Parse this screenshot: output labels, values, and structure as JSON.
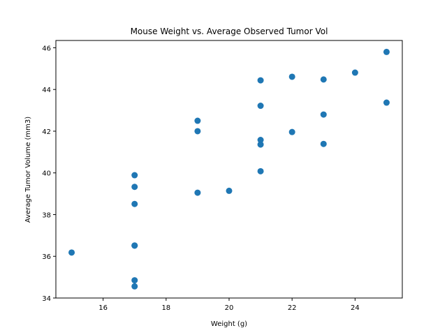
{
  "chart_data": {
    "type": "scatter",
    "title": "Mouse Weight vs. Average Observed Tumor Vol",
    "xlabel": "Weight (g)",
    "ylabel": "Average Tumor Volume (mm3)",
    "xlim": [
      14.5,
      25.5
    ],
    "ylim": [
      34,
      46.35
    ],
    "x_ticks": [
      16,
      18,
      20,
      22,
      24
    ],
    "y_ticks": [
      34,
      36,
      38,
      40,
      42,
      44,
      46
    ],
    "grid": false,
    "marker_color": "#1f77b4",
    "points": [
      {
        "x": 15,
        "y": 36.18
      },
      {
        "x": 17,
        "y": 34.56
      },
      {
        "x": 17,
        "y": 34.85
      },
      {
        "x": 17,
        "y": 36.51
      },
      {
        "x": 17,
        "y": 36.52
      },
      {
        "x": 17,
        "y": 38.51
      },
      {
        "x": 17,
        "y": 39.33
      },
      {
        "x": 17,
        "y": 39.89
      },
      {
        "x": 19,
        "y": 39.05
      },
      {
        "x": 19,
        "y": 42.0
      },
      {
        "x": 19,
        "y": 42.5
      },
      {
        "x": 20,
        "y": 39.14
      },
      {
        "x": 21,
        "y": 40.08
      },
      {
        "x": 21,
        "y": 41.36
      },
      {
        "x": 21,
        "y": 41.58
      },
      {
        "x": 21,
        "y": 43.22
      },
      {
        "x": 21,
        "y": 44.44
      },
      {
        "x": 22,
        "y": 41.96
      },
      {
        "x": 22,
        "y": 44.61
      },
      {
        "x": 23,
        "y": 41.39
      },
      {
        "x": 23,
        "y": 42.8
      },
      {
        "x": 23,
        "y": 44.48
      },
      {
        "x": 24,
        "y": 44.81
      },
      {
        "x": 25,
        "y": 43.37
      },
      {
        "x": 25,
        "y": 45.8
      }
    ]
  }
}
